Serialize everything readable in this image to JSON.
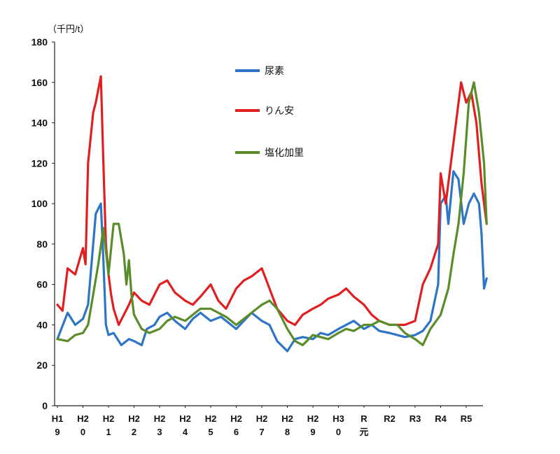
{
  "chart_data": {
    "type": "line",
    "title": "",
    "unit_label": "（千円/t）",
    "xlabel": "",
    "ylabel": "",
    "ylim": [
      0,
      180
    ],
    "y_ticks": [
      0,
      20,
      40,
      60,
      80,
      100,
      120,
      140,
      160,
      180
    ],
    "grid": false,
    "legend_position": "top-center",
    "x_range": [
      0,
      17
    ],
    "categories": [
      {
        "top": "H1",
        "bottom": "9"
      },
      {
        "top": "H2",
        "bottom": "0"
      },
      {
        "top": "H2",
        "bottom": "1"
      },
      {
        "top": "H2",
        "bottom": "2"
      },
      {
        "top": "H2",
        "bottom": "3"
      },
      {
        "top": "H2",
        "bottom": "4"
      },
      {
        "top": "H2",
        "bottom": "5"
      },
      {
        "top": "H2",
        "bottom": "6"
      },
      {
        "top": "H2",
        "bottom": "7"
      },
      {
        "top": "H2",
        "bottom": "8"
      },
      {
        "top": "H2",
        "bottom": "9"
      },
      {
        "top": "H3",
        "bottom": "0"
      },
      {
        "top": "R",
        "bottom": "元"
      },
      {
        "top": "R2",
        "bottom": ""
      },
      {
        "top": "R3",
        "bottom": ""
      },
      {
        "top": "R4",
        "bottom": ""
      },
      {
        "top": "R5",
        "bottom": ""
      }
    ],
    "series": [
      {
        "name": "尿素",
        "color": "#2e75c6",
        "x": [
          0,
          0.4,
          0.7,
          1.0,
          1.2,
          1.5,
          1.7,
          1.8,
          1.9,
          2.0,
          2.2,
          2.5,
          2.8,
          3.0,
          3.3,
          3.5,
          3.8,
          4.0,
          4.3,
          4.6,
          5.0,
          5.3,
          5.6,
          6.0,
          6.4,
          6.8,
          7.0,
          7.3,
          7.6,
          8.0,
          8.3,
          8.6,
          9.0,
          9.3,
          9.6,
          10.0,
          10.3,
          10.6,
          11.0,
          11.3,
          11.6,
          12.0,
          12.3,
          12.6,
          13.0,
          13.3,
          13.6,
          14.0,
          14.3,
          14.6,
          14.9,
          15.0,
          15.2,
          15.3,
          15.5,
          15.7,
          15.9,
          16.1,
          16.3,
          16.5,
          16.6,
          16.7,
          16.8
        ],
        "values": [
          33,
          46,
          40,
          43,
          50,
          95,
          100,
          72,
          40,
          35,
          36,
          30,
          33,
          32,
          30,
          38,
          40,
          44,
          46,
          42,
          38,
          43,
          46,
          42,
          44,
          40,
          38,
          42,
          46,
          42,
          40,
          32,
          27,
          33,
          34,
          33,
          36,
          35,
          38,
          40,
          42,
          38,
          40,
          37,
          36,
          35,
          34,
          35,
          37,
          42,
          60,
          100,
          104,
          90,
          116,
          112,
          90,
          100,
          105,
          100,
          85,
          58,
          63
        ]
      },
      {
        "name": "りん安",
        "color": "#e02020",
        "x": [
          0,
          0.2,
          0.4,
          0.7,
          1.0,
          1.1,
          1.2,
          1.4,
          1.5,
          1.7,
          1.8,
          1.9,
          2.0,
          2.1,
          2.2,
          2.4,
          2.6,
          2.8,
          3.0,
          3.3,
          3.6,
          4.0,
          4.3,
          4.6,
          5.0,
          5.3,
          5.6,
          6.0,
          6.3,
          6.6,
          7.0,
          7.3,
          7.6,
          8.0,
          8.3,
          8.6,
          9.0,
          9.3,
          9.6,
          10.0,
          10.3,
          10.6,
          11.0,
          11.3,
          11.6,
          12.0,
          12.3,
          12.6,
          13.0,
          13.3,
          13.6,
          14.0,
          14.3,
          14.6,
          14.9,
          15.0,
          15.2,
          15.4,
          15.6,
          15.8,
          16.0,
          16.2,
          16.4,
          16.6,
          16.8
        ],
        "values": [
          50,
          47,
          68,
          65,
          78,
          70,
          120,
          145,
          150,
          163,
          120,
          80,
          65,
          55,
          48,
          40,
          45,
          50,
          56,
          52,
          50,
          60,
          62,
          56,
          52,
          50,
          54,
          60,
          52,
          48,
          58,
          62,
          64,
          68,
          58,
          48,
          42,
          40,
          45,
          48,
          50,
          53,
          55,
          58,
          54,
          50,
          45,
          42,
          40,
          40,
          40,
          42,
          60,
          68,
          80,
          115,
          100,
          120,
          140,
          160,
          150,
          155,
          140,
          110,
          90
        ]
      },
      {
        "name": "塩化加里",
        "color": "#5b8c2a",
        "x": [
          0,
          0.4,
          0.7,
          1.0,
          1.2,
          1.4,
          1.6,
          1.8,
          2.0,
          2.2,
          2.4,
          2.6,
          2.7,
          2.8,
          2.9,
          3.0,
          3.3,
          3.6,
          4.0,
          4.3,
          4.6,
          5.0,
          5.3,
          5.6,
          6.0,
          6.3,
          6.6,
          7.0,
          7.3,
          7.6,
          8.0,
          8.3,
          8.6,
          9.0,
          9.3,
          9.6,
          10.0,
          10.3,
          10.6,
          11.0,
          11.3,
          11.6,
          12.0,
          12.3,
          12.6,
          13.0,
          13.3,
          13.6,
          14.0,
          14.3,
          14.6,
          15.0,
          15.3,
          15.5,
          15.7,
          15.9,
          16.1,
          16.3,
          16.5,
          16.7,
          16.8
        ],
        "values": [
          33,
          32,
          35,
          36,
          40,
          55,
          70,
          88,
          65,
          90,
          90,
          75,
          60,
          72,
          55,
          45,
          38,
          36,
          38,
          42,
          44,
          42,
          45,
          48,
          48,
          46,
          44,
          40,
          43,
          46,
          50,
          52,
          48,
          38,
          32,
          30,
          35,
          34,
          33,
          36,
          38,
          37,
          40,
          40,
          42,
          40,
          40,
          36,
          33,
          30,
          38,
          45,
          58,
          75,
          90,
          115,
          150,
          160,
          145,
          120,
          90
        ]
      }
    ]
  }
}
